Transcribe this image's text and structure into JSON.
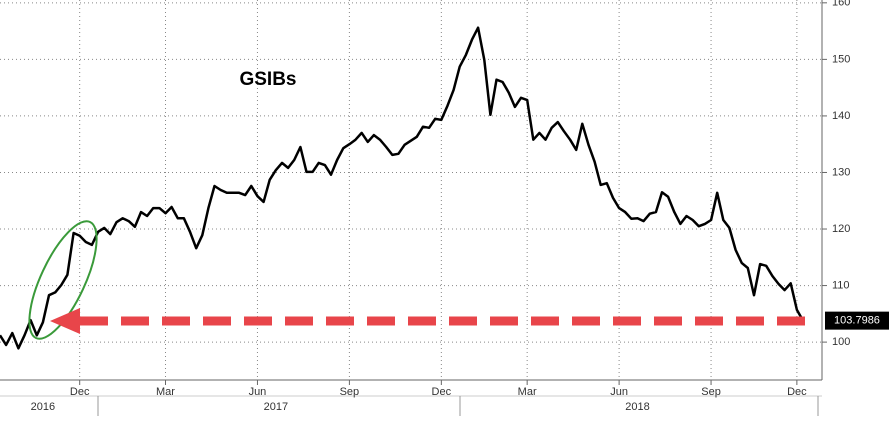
{
  "chart_data": {
    "type": "line",
    "title": "GSIBs",
    "categories": [
      null,
      null,
      null,
      null,
      null,
      null,
      null,
      null,
      null,
      null,
      null,
      null,
      null,
      "Dec",
      null,
      null,
      null,
      null,
      null,
      null,
      null,
      null,
      null,
      null,
      null,
      null,
      null,
      "Mar",
      null,
      null,
      null,
      null,
      null,
      null,
      null,
      null,
      null,
      null,
      null,
      null,
      null,
      null,
      "Jun",
      null,
      null,
      null,
      null,
      null,
      null,
      null,
      null,
      null,
      null,
      null,
      null,
      null,
      null,
      "Sep",
      null,
      null,
      null,
      null,
      null,
      null,
      null,
      null,
      null,
      null,
      null,
      null,
      null,
      null,
      "Dec",
      null,
      null,
      null,
      null,
      null,
      null,
      null,
      null,
      null,
      null,
      null,
      null,
      null,
      "Mar",
      null,
      null,
      null,
      null,
      null,
      null,
      null,
      null,
      null,
      null,
      null,
      null,
      null,
      null,
      "Jun",
      null,
      null,
      null,
      null,
      null,
      null,
      null,
      null,
      null,
      null,
      null,
      null,
      null,
      null,
      "Sep",
      null,
      null,
      null,
      null,
      null,
      null,
      null,
      null,
      null,
      null,
      null,
      null,
      null,
      "Dec",
      null
    ],
    "years": [
      null,
      null,
      null,
      null,
      null,
      null,
      null,
      "2016",
      null,
      null,
      null,
      null,
      null,
      null,
      null,
      null,
      null,
      null,
      null,
      null,
      null,
      null,
      null,
      null,
      null,
      null,
      null,
      null,
      null,
      null,
      null,
      null,
      null,
      null,
      null,
      null,
      null,
      null,
      null,
      null,
      null,
      null,
      null,
      null,
      null,
      "2017",
      null,
      null,
      null,
      null,
      null,
      null,
      null,
      null,
      null,
      null,
      null,
      null,
      null,
      null,
      null,
      null,
      null,
      null,
      null,
      null,
      null,
      null,
      null,
      null,
      null,
      null,
      null,
      null,
      null,
      null,
      null,
      null,
      null,
      null,
      null,
      null,
      null,
      null,
      null,
      null,
      null,
      null,
      null,
      null,
      null,
      null,
      null,
      null,
      null,
      null,
      null,
      null,
      null,
      null,
      null,
      null,
      null,
      null,
      "2018",
      null,
      null,
      null,
      null,
      null,
      null,
      null,
      null,
      null,
      null,
      null,
      null,
      null,
      null,
      null,
      null,
      null,
      null,
      null,
      null,
      null,
      null,
      null,
      null,
      null,
      null,
      null
    ],
    "values": [
      101.2,
      99.5,
      101.6,
      98.9,
      101.2,
      103.9,
      101.2,
      103.5,
      108.3,
      108.8,
      110.1,
      111.9,
      119.3,
      118.8,
      117.7,
      117.2,
      119.5,
      120.2,
      119.1,
      121.2,
      121.9,
      121.4,
      120.4,
      123.0,
      122.3,
      123.7,
      123.7,
      122.8,
      123.9,
      121.9,
      121.9,
      119.5,
      116.6,
      118.9,
      123.7,
      127.6,
      126.9,
      126.4,
      126.4,
      126.4,
      126.0,
      127.6,
      125.8,
      124.8,
      128.7,
      130.4,
      131.7,
      130.8,
      132.2,
      134.5,
      130.1,
      130.1,
      131.7,
      131.3,
      129.6,
      132.2,
      134.3,
      135.0,
      135.8,
      137.0,
      135.4,
      136.6,
      135.8,
      134.5,
      133.1,
      133.3,
      134.9,
      135.6,
      136.3,
      138.1,
      137.9,
      139.5,
      139.3,
      141.8,
      144.6,
      148.7,
      150.8,
      153.5,
      155.6,
      149.9,
      140.2,
      146.4,
      146.0,
      144.1,
      141.6,
      143.2,
      142.8,
      135.8,
      137.0,
      135.8,
      137.9,
      138.9,
      137.3,
      135.8,
      134.0,
      138.6,
      134.9,
      131.9,
      127.8,
      128.1,
      125.5,
      123.7,
      123.0,
      121.8,
      121.9,
      121.4,
      122.7,
      123.0,
      126.5,
      125.7,
      123.0,
      120.9,
      122.3,
      121.6,
      120.5,
      120.9,
      121.6,
      126.4,
      121.6,
      120.2,
      116.3,
      114.0,
      113.1,
      108.3,
      113.8,
      113.5,
      111.7,
      110.3,
      109.2,
      110.4,
      105.7,
      103.7986
    ],
    "color": "#000000",
    "ylim": [
      93.3,
      160.5
    ],
    "yticks": [
      100,
      110,
      120,
      130,
      140,
      150,
      160
    ],
    "grid": true
  }
}
